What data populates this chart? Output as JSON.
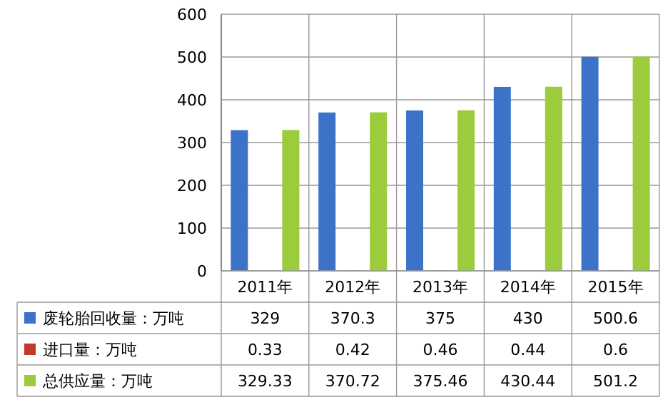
{
  "chart_data": {
    "type": "bar",
    "categories": [
      "2011年",
      "2012年",
      "2013年",
      "2014年",
      "2015年"
    ],
    "series": [
      {
        "name": "废轮胎回收量：万吨",
        "color": "#3c72c8",
        "values": [
          329,
          370.3,
          375,
          430,
          500.6
        ]
      },
      {
        "name": "进口量：万吨",
        "color": "#c0392b",
        "values": [
          0.33,
          0.42,
          0.46,
          0.44,
          0.6
        ]
      },
      {
        "name": "总供应量：万吨",
        "color": "#9ccc3c",
        "values": [
          329.33,
          370.72,
          375.46,
          430.44,
          501.2
        ]
      }
    ],
    "ylim": [
      0,
      600
    ],
    "yticks": [
      0,
      100,
      200,
      300,
      400,
      500,
      600
    ],
    "grid": "y",
    "legend": "bottom",
    "data_labels": true
  }
}
